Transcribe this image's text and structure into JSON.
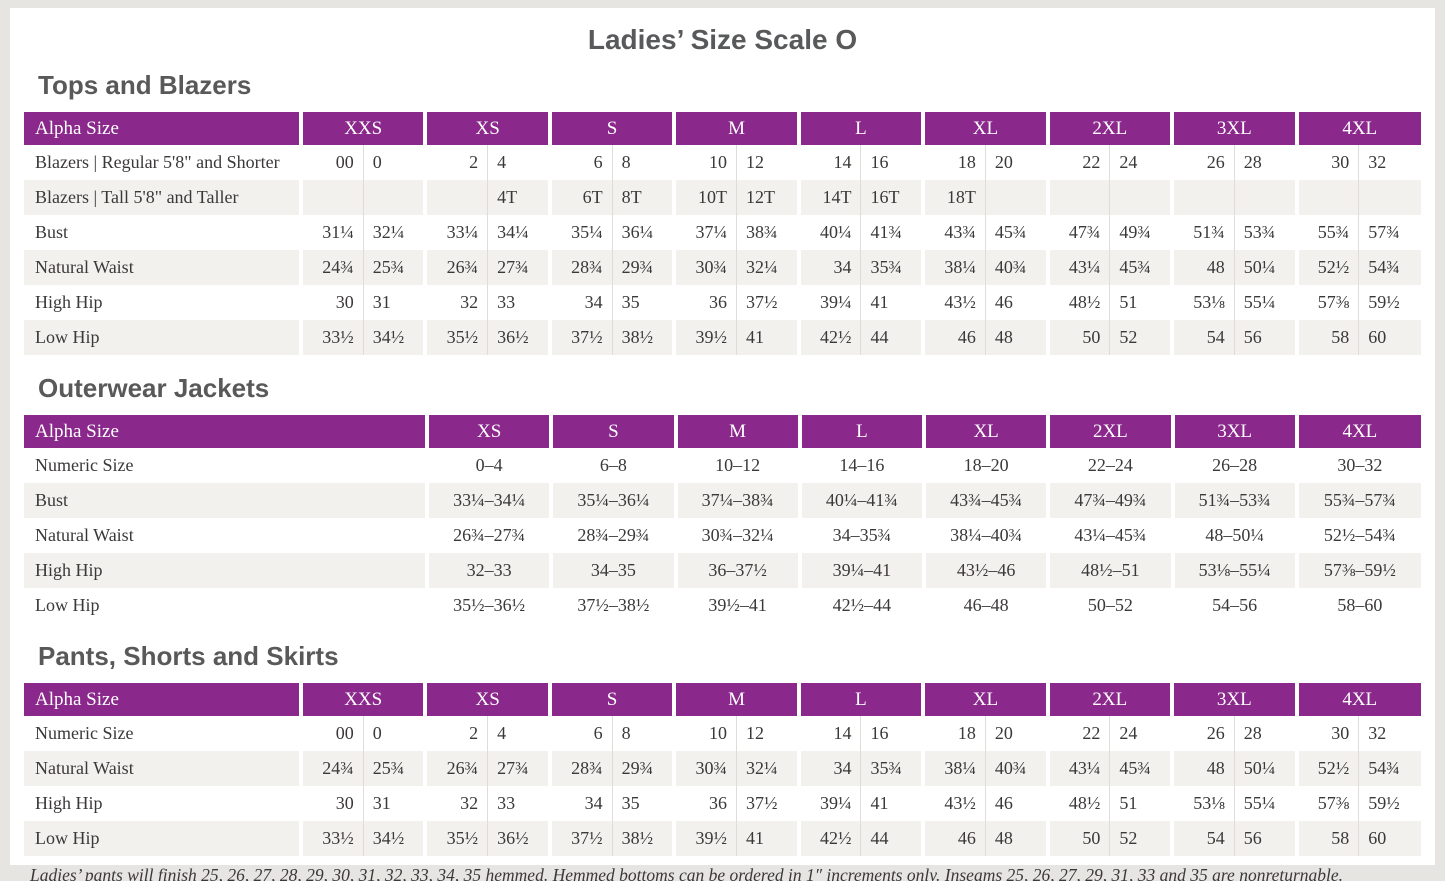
{
  "page": {
    "title": "Ladies’ Size Scale O"
  },
  "colors": {
    "header_purple": "#8a288c",
    "row_stripe": "#f2f1ee",
    "body_text": "#3b3838",
    "heading_gray": "#595959",
    "page_frame": "#e7e5e2"
  },
  "footnote": "Ladies’ pants will finish 25, 26, 27, 28, 29, 30, 31, 32, 33, 34, 35 hemmed. Hemmed bottoms can be ordered in 1″ increments only. Inseams 25, 26, 27, 29, 31, 33 and 35 are nonreturnable.",
  "tables": [
    {
      "id": "tops-and-blazers",
      "section_title": "Tops and Blazers",
      "header_label": "Alpha Size",
      "paired": true,
      "columns": [
        "XXS",
        "XS",
        "S",
        "M",
        "L",
        "XL",
        "2XL",
        "3XL",
        "4XL"
      ],
      "rows": [
        {
          "label": "Blazers | Regular 5'8\" and Shorter",
          "values": [
            [
              "00",
              "0"
            ],
            [
              "2",
              "4"
            ],
            [
              "6",
              "8"
            ],
            [
              "10",
              "12"
            ],
            [
              "14",
              "16"
            ],
            [
              "18",
              "20"
            ],
            [
              "22",
              "24"
            ],
            [
              "26",
              "28"
            ],
            [
              "30",
              "32"
            ]
          ]
        },
        {
          "label": "Blazers | Tall 5'8\" and Taller",
          "values": [
            [
              "",
              ""
            ],
            [
              "",
              "4T"
            ],
            [
              "6T",
              "8T"
            ],
            [
              "10T",
              "12T"
            ],
            [
              "14T",
              "16T"
            ],
            [
              "18T",
              ""
            ],
            [
              "",
              ""
            ],
            [
              "",
              ""
            ],
            [
              "",
              ""
            ]
          ]
        },
        {
          "label": "Bust",
          "values": [
            [
              "31¼",
              "32¼"
            ],
            [
              "33¼",
              "34¼"
            ],
            [
              "35¼",
              "36¼"
            ],
            [
              "37¼",
              "38¾"
            ],
            [
              "40¼",
              "41¾"
            ],
            [
              "43¾",
              "45¾"
            ],
            [
              "47¾",
              "49¾"
            ],
            [
              "51¾",
              "53¾"
            ],
            [
              "55¾",
              "57¾"
            ]
          ]
        },
        {
          "label": "Natural Waist",
          "values": [
            [
              "24¾",
              "25¾"
            ],
            [
              "26¾",
              "27¾"
            ],
            [
              "28¾",
              "29¾"
            ],
            [
              "30¾",
              "32¼"
            ],
            [
              "34",
              "35¾"
            ],
            [
              "38¼",
              "40¾"
            ],
            [
              "43¼",
              "45¾"
            ],
            [
              "48",
              "50¼"
            ],
            [
              "52½",
              "54¾"
            ]
          ]
        },
        {
          "label": "High Hip",
          "values": [
            [
              "30",
              "31"
            ],
            [
              "32",
              "33"
            ],
            [
              "34",
              "35"
            ],
            [
              "36",
              "37½"
            ],
            [
              "39¼",
              "41"
            ],
            [
              "43½",
              "46"
            ],
            [
              "48½",
              "51"
            ],
            [
              "53⅛",
              "55¼"
            ],
            [
              "57⅜",
              "59½"
            ]
          ]
        },
        {
          "label": "Low Hip",
          "values": [
            [
              "33½",
              "34½"
            ],
            [
              "35½",
              "36½"
            ],
            [
              "37½",
              "38½"
            ],
            [
              "39½",
              "41"
            ],
            [
              "42½",
              "44"
            ],
            [
              "46",
              "48"
            ],
            [
              "50",
              "52"
            ],
            [
              "54",
              "56"
            ],
            [
              "58",
              "60"
            ]
          ]
        }
      ]
    },
    {
      "id": "outerwear-jackets",
      "section_title": "Outerwear Jackets",
      "header_label": "Alpha Size",
      "paired": false,
      "columns": [
        "XS",
        "S",
        "M",
        "L",
        "XL",
        "2XL",
        "3XL",
        "4XL"
      ],
      "rows": [
        {
          "label": "Numeric Size",
          "values": [
            "0–4",
            "6–8",
            "10–12",
            "14–16",
            "18–20",
            "22–24",
            "26–28",
            "30–32"
          ]
        },
        {
          "label": "Bust",
          "values": [
            "33¼–34¼",
            "35¼–36¼",
            "37¼–38¾",
            "40¼–41¾",
            "43¾–45¾",
            "47¾–49¾",
            "51¾–53¾",
            "55¾–57¾"
          ]
        },
        {
          "label": "Natural Waist",
          "values": [
            "26¾–27¾",
            "28¾–29¾",
            "30¾–32¼",
            "34–35¾",
            "38¼–40¾",
            "43¼–45¾",
            "48–50¼",
            "52½–54¾"
          ]
        },
        {
          "label": "High Hip",
          "values": [
            "32–33",
            "34–35",
            "36–37½",
            "39¼–41",
            "43½–46",
            "48½–51",
            "53⅛–55¼",
            "57⅜–59½"
          ]
        },
        {
          "label": "Low Hip",
          "values": [
            "35½–36½",
            "37½–38½",
            "39½–41",
            "42½–44",
            "46–48",
            "50–52",
            "54–56",
            "58–60"
          ]
        }
      ]
    },
    {
      "id": "pants-shorts-and-skirts",
      "section_title": "Pants, Shorts and Skirts",
      "header_label": "Alpha Size",
      "paired": true,
      "columns": [
        "XXS",
        "XS",
        "S",
        "M",
        "L",
        "XL",
        "2XL",
        "3XL",
        "4XL"
      ],
      "rows": [
        {
          "label": "Numeric Size",
          "values": [
            [
              "00",
              "0"
            ],
            [
              "2",
              "4"
            ],
            [
              "6",
              "8"
            ],
            [
              "10",
              "12"
            ],
            [
              "14",
              "16"
            ],
            [
              "18",
              "20"
            ],
            [
              "22",
              "24"
            ],
            [
              "26",
              "28"
            ],
            [
              "30",
              "32"
            ]
          ]
        },
        {
          "label": "Natural Waist",
          "values": [
            [
              "24¾",
              "25¾"
            ],
            [
              "26¾",
              "27¾"
            ],
            [
              "28¾",
              "29¾"
            ],
            [
              "30¾",
              "32¼"
            ],
            [
              "34",
              "35¾"
            ],
            [
              "38¼",
              "40¾"
            ],
            [
              "43¼",
              "45¾"
            ],
            [
              "48",
              "50¼"
            ],
            [
              "52½",
              "54¾"
            ]
          ]
        },
        {
          "label": "High Hip",
          "values": [
            [
              "30",
              "31"
            ],
            [
              "32",
              "33"
            ],
            [
              "34",
              "35"
            ],
            [
              "36",
              "37½"
            ],
            [
              "39¼",
              "41"
            ],
            [
              "43½",
              "46"
            ],
            [
              "48½",
              "51"
            ],
            [
              "53⅛",
              "55¼"
            ],
            [
              "57⅜",
              "59½"
            ]
          ]
        },
        {
          "label": "Low Hip",
          "values": [
            [
              "33½",
              "34½"
            ],
            [
              "35½",
              "36½"
            ],
            [
              "37½",
              "38½"
            ],
            [
              "39½",
              "41"
            ],
            [
              "42½",
              "44"
            ],
            [
              "46",
              "48"
            ],
            [
              "50",
              "52"
            ],
            [
              "54",
              "56"
            ],
            [
              "58",
              "60"
            ]
          ]
        }
      ]
    }
  ]
}
